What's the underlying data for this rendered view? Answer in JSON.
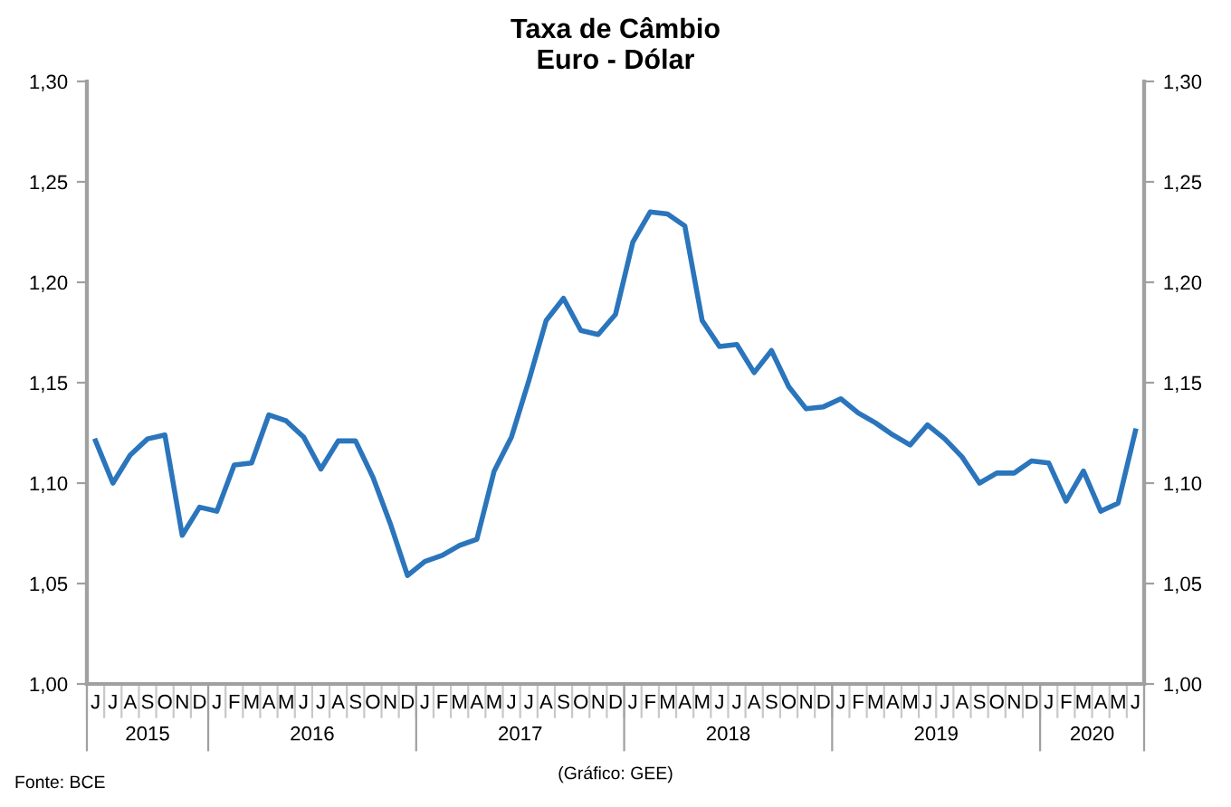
{
  "chart_data": {
    "type": "line",
    "title": "Taxa de Câmbio",
    "subtitle": "Euro - Dólar",
    "categories": [
      "J",
      "J",
      "A",
      "S",
      "O",
      "N",
      "D",
      "J",
      "F",
      "M",
      "A",
      "M",
      "J",
      "J",
      "A",
      "S",
      "O",
      "N",
      "D",
      "J",
      "F",
      "M",
      "A",
      "M",
      "J",
      "J",
      "A",
      "S",
      "O",
      "N",
      "D",
      "J",
      "F",
      "M",
      "A",
      "M",
      "J",
      "J",
      "A",
      "S",
      "O",
      "N",
      "D",
      "J",
      "F",
      "M",
      "A",
      "M",
      "J",
      "J",
      "A",
      "S",
      "O",
      "N",
      "D",
      "J",
      "F",
      "M",
      "A",
      "M",
      "J"
    ],
    "series": [
      {
        "color": "#2a75bc",
        "values": [
          1.121,
          1.1,
          1.114,
          1.122,
          1.124,
          1.074,
          1.088,
          1.086,
          1.109,
          1.11,
          1.134,
          1.131,
          1.123,
          1.107,
          1.121,
          1.121,
          1.103,
          1.08,
          1.054,
          1.061,
          1.064,
          1.069,
          1.072,
          1.106,
          1.123,
          1.151,
          1.181,
          1.192,
          1.176,
          1.174,
          1.184,
          1.22,
          1.235,
          1.234,
          1.228,
          1.181,
          1.168,
          1.169,
          1.155,
          1.166,
          1.148,
          1.137,
          1.138,
          1.142,
          1.135,
          1.13,
          1.124,
          1.119,
          1.129,
          1.122,
          1.113,
          1.1,
          1.105,
          1.105,
          1.111,
          1.11,
          1.091,
          1.106,
          1.086,
          1.09,
          1.126
        ]
      }
    ],
    "ylim": [
      1.0,
      1.3
    ],
    "yticks": [
      {
        "value": 1.0,
        "label": "1,00"
      },
      {
        "value": 1.05,
        "label": "1,05"
      },
      {
        "value": 1.1,
        "label": "1,10"
      },
      {
        "value": 1.15,
        "label": "1,15"
      },
      {
        "value": 1.2,
        "label": "1,20"
      },
      {
        "value": 1.25,
        "label": "1,25"
      },
      {
        "value": 1.3,
        "label": "1,30"
      }
    ],
    "y2lim": [
      1.0,
      1.3
    ],
    "y2ticks": [
      {
        "value": 1.0,
        "label": "1,00"
      },
      {
        "value": 1.05,
        "label": "1,05"
      },
      {
        "value": 1.1,
        "label": "1,10"
      },
      {
        "value": 1.15,
        "label": "1,15"
      },
      {
        "value": 1.2,
        "label": "1,20"
      },
      {
        "value": 1.25,
        "label": "1,25"
      },
      {
        "value": 1.3,
        "label": "1,30"
      }
    ],
    "grid": false,
    "legend": false,
    "marker": "none",
    "line_style": "solid",
    "annotations": [
      "2015",
      "2016",
      "2017",
      "2018",
      "2019",
      "2020",
      "Fonte: BCE",
      "(Gráfico: GEE)"
    ]
  }
}
